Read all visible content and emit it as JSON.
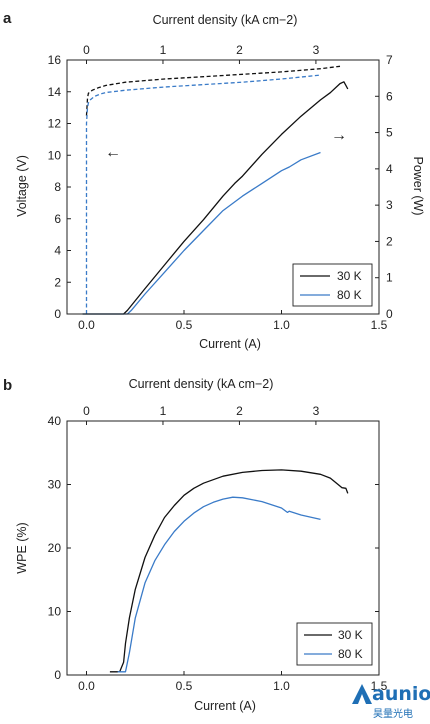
{
  "figure": {
    "watermark": {
      "text": "aunion",
      "subtext": "昊量光电",
      "color": "#1f6fb5"
    }
  },
  "chart_data": [
    {
      "panel": "a",
      "type": "line",
      "xlabel": "Current (A)",
      "xlim": [
        -0.1,
        1.5
      ],
      "xticks": [
        "0.0",
        "0.5",
        "1.0",
        "1.5"
      ],
      "top_xlabel": "Current density (kA cm−2)",
      "top_xticks": [
        "0",
        "1",
        "2",
        "3"
      ],
      "ylabel": "Voltage (V)",
      "ylim": [
        0,
        16
      ],
      "yticks": [
        "0",
        "2",
        "4",
        "6",
        "8",
        "10",
        "12",
        "14",
        "16"
      ],
      "y2label": "Power (W)",
      "y2lim": [
        0,
        7
      ],
      "y2ticks": [
        "0",
        "1",
        "2",
        "3",
        "4",
        "5",
        "6",
        "7"
      ],
      "legend": {
        "position": "bottom-right",
        "entries": [
          "30 K",
          "80 K"
        ]
      },
      "colors": {
        "30K": "#111111",
        "80K": "#3a7bc8"
      },
      "series": [
        {
          "name": "30 K",
          "quantity": "voltage",
          "axis": "left",
          "style": "dashed",
          "x": [
            0.0,
            0.005,
            0.01,
            0.03,
            0.06,
            0.1,
            0.2,
            0.4,
            0.6,
            0.8,
            1.0,
            1.2,
            1.3
          ],
          "y": [
            12.5,
            13.6,
            13.9,
            14.1,
            14.25,
            14.4,
            14.6,
            14.8,
            14.95,
            15.1,
            15.25,
            15.45,
            15.6
          ]
        },
        {
          "name": "80 K",
          "quantity": "voltage",
          "axis": "left",
          "style": "dashed",
          "x": [
            0.0,
            0.0,
            0.0,
            0.005,
            0.01,
            0.02,
            0.04,
            0.07,
            0.1,
            0.2,
            0.4,
            0.6,
            0.8,
            1.0,
            1.2
          ],
          "y": [
            0.0,
            6.0,
            12.0,
            13.0,
            13.3,
            13.5,
            13.7,
            13.85,
            13.95,
            14.1,
            14.3,
            14.45,
            14.6,
            14.8,
            15.05
          ]
        },
        {
          "name": "30 K",
          "quantity": "power",
          "axis": "right",
          "style": "solid",
          "x": [
            -0.02,
            0.19,
            0.21,
            0.3,
            0.4,
            0.5,
            0.6,
            0.7,
            0.76,
            0.8,
            0.9,
            1.0,
            1.1,
            1.2,
            1.25,
            1.3,
            1.32,
            1.33,
            1.34
          ],
          "y": [
            0.0,
            0.0,
            0.1,
            0.7,
            1.35,
            2.0,
            2.6,
            3.25,
            3.6,
            3.8,
            4.4,
            4.95,
            5.45,
            5.9,
            6.1,
            6.35,
            6.4,
            6.3,
            6.2
          ]
        },
        {
          "name": "80 K",
          "quantity": "power",
          "axis": "right",
          "style": "solid",
          "x": [
            -0.02,
            0.21,
            0.23,
            0.3,
            0.4,
            0.5,
            0.6,
            0.7,
            0.8,
            0.9,
            1.0,
            1.04,
            1.1,
            1.2
          ],
          "y": [
            0.0,
            0.0,
            0.1,
            0.55,
            1.15,
            1.75,
            2.3,
            2.85,
            3.25,
            3.6,
            3.95,
            4.05,
            4.25,
            4.45
          ]
        }
      ],
      "annotations": [
        {
          "text": "←",
          "meaning": "voltage curves read on left axis",
          "x": 0.15,
          "y": 10.0
        },
        {
          "text": "→",
          "meaning": "power curves read on right axis",
          "x": 1.3,
          "y": 12.2
        }
      ]
    },
    {
      "panel": "b",
      "type": "line",
      "xlabel": "Current (A)",
      "xlim": [
        -0.1,
        1.5
      ],
      "xticks": [
        "0.0",
        "0.5",
        "1.0",
        "1.5"
      ],
      "top_xlabel": "Current density (kA cm−2)",
      "top_xticks": [
        "0",
        "1",
        "2",
        "3"
      ],
      "ylabel": "WPE (%)",
      "ylim": [
        0,
        40
      ],
      "yticks": [
        "0",
        "10",
        "20",
        "30",
        "40"
      ],
      "legend": {
        "position": "bottom-right",
        "entries": [
          "30 K",
          "80 K"
        ]
      },
      "colors": {
        "30K": "#111111",
        "80K": "#3a7bc8"
      },
      "series": [
        {
          "name": "30 K",
          "style": "solid",
          "x": [
            0.12,
            0.17,
            0.19,
            0.2,
            0.22,
            0.25,
            0.3,
            0.35,
            0.4,
            0.45,
            0.5,
            0.55,
            0.6,
            0.7,
            0.8,
            0.9,
            1.0,
            1.1,
            1.2,
            1.25,
            1.29,
            1.31,
            1.33,
            1.34
          ],
          "y": [
            0.5,
            0.5,
            2.0,
            5.0,
            9.0,
            13.5,
            18.5,
            22.0,
            24.8,
            26.7,
            28.3,
            29.4,
            30.2,
            31.3,
            31.9,
            32.2,
            32.3,
            32.1,
            31.6,
            31.0,
            30.0,
            29.5,
            29.4,
            28.6
          ]
        },
        {
          "name": "80 K",
          "style": "solid",
          "x": [
            0.16,
            0.2,
            0.22,
            0.25,
            0.3,
            0.35,
            0.4,
            0.45,
            0.5,
            0.55,
            0.6,
            0.65,
            0.7,
            0.75,
            0.8,
            0.9,
            1.0,
            1.03,
            1.04,
            1.1,
            1.2
          ],
          "y": [
            0.5,
            0.5,
            3.5,
            9.0,
            14.5,
            18.0,
            20.5,
            22.6,
            24.2,
            25.5,
            26.5,
            27.2,
            27.7,
            28.0,
            27.9,
            27.3,
            26.3,
            25.6,
            25.8,
            25.2,
            24.5
          ]
        }
      ]
    }
  ]
}
